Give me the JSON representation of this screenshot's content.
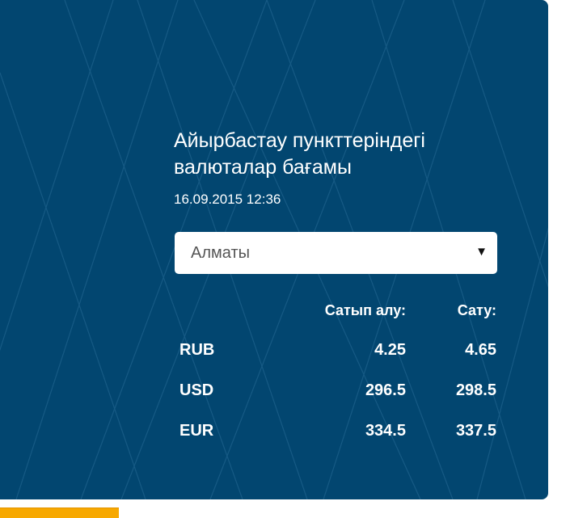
{
  "widget": {
    "title_line1": "Айырбастау пункттеріндегі",
    "title_line2": "валюталар бағамы",
    "datetime": "16.09.2015 12:36",
    "city_select": {
      "value": "Алматы"
    },
    "headers": {
      "buy": "Сатып алу:",
      "sell": "Сату:"
    },
    "rates": [
      {
        "currency": "RUB",
        "buy": "4.25",
        "sell": "4.65"
      },
      {
        "currency": "USD",
        "buy": "296.5",
        "sell": "298.5"
      },
      {
        "currency": "EUR",
        "buy": "334.5",
        "sell": "337.5"
      }
    ]
  },
  "colors": {
    "panel": "#024670",
    "accent": "#f7a800"
  }
}
